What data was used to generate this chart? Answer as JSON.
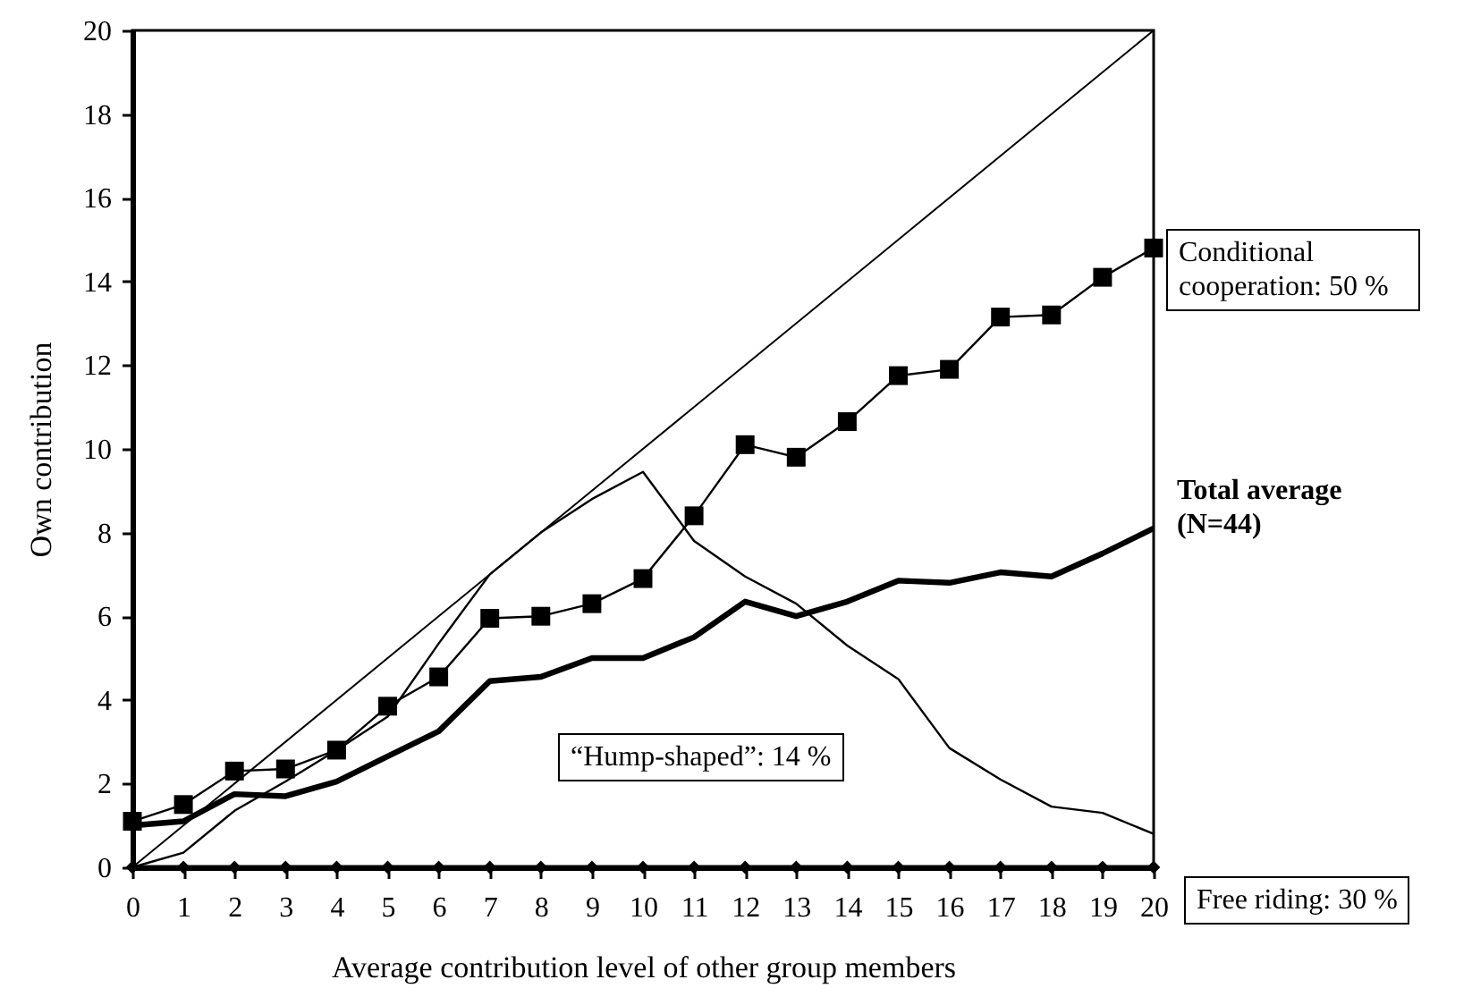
{
  "chart_data": {
    "type": "line",
    "xlabel": "Average contribution level of other group members",
    "ylabel": "Own contribution",
    "x": [
      0,
      1,
      2,
      3,
      4,
      5,
      6,
      7,
      8,
      9,
      10,
      11,
      12,
      13,
      14,
      15,
      16,
      17,
      18,
      19,
      20
    ],
    "xlim": [
      0,
      20
    ],
    "xticks": [
      0,
      1,
      2,
      3,
      4,
      5,
      6,
      7,
      8,
      9,
      10,
      11,
      12,
      13,
      14,
      15,
      16,
      17,
      18,
      19,
      20
    ],
    "ylim": [
      0,
      20
    ],
    "yticks": [
      0,
      2,
      4,
      6,
      8,
      10,
      12,
      14,
      16,
      18,
      20
    ],
    "series": [
      {
        "x": [
          0,
          20
        ],
        "values": [
          0,
          20
        ],
        "color": "#000000"
      },
      {
        "name": "Conditional cooperation: 50 %",
        "color": "#000000",
        "marker": "square",
        "values": [
          1.1,
          1.5,
          2.3,
          2.35,
          2.8,
          3.85,
          4.55,
          5.95,
          6.0,
          6.3,
          6.9,
          8.4,
          10.1,
          9.8,
          10.65,
          11.75,
          11.9,
          13.15,
          13.2,
          14.1,
          14.8
        ]
      },
      {
        "name": "Total average (N=44)",
        "color": "#000000",
        "marker": "none",
        "values": [
          1.0,
          1.1,
          1.75,
          1.7,
          2.05,
          2.65,
          3.25,
          4.45,
          4.55,
          5.0,
          5.0,
          5.5,
          6.35,
          6.0,
          6.35,
          6.85,
          6.8,
          7.05,
          6.95,
          7.5,
          8.1
        ]
      },
      {
        "name": "“Hump-shaped”: 14 %",
        "color": "#000000",
        "marker": "none",
        "values": [
          0,
          0.35,
          1.35,
          2.05,
          2.8,
          3.6,
          5.35,
          7.0,
          8.0,
          8.8,
          9.45,
          7.8,
          6.95,
          6.3,
          5.3,
          4.5,
          2.85,
          2.1,
          1.45,
          1.3,
          0.8
        ]
      },
      {
        "name": "Free riding: 30 %",
        "color": "#000000",
        "marker": "diamond",
        "values": [
          0,
          0,
          0,
          0,
          0,
          0,
          0,
          0,
          0,
          0,
          0,
          0,
          0,
          0,
          0,
          0,
          0,
          0,
          0,
          0,
          0
        ]
      }
    ]
  }
}
